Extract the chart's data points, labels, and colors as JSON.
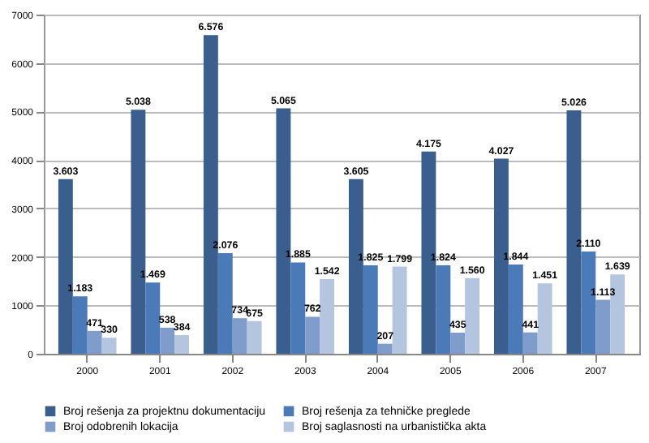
{
  "chart_data": {
    "type": "bar",
    "categories": [
      "2000",
      "2001",
      "2002",
      "2003",
      "2004",
      "2005",
      "2006",
      "2007"
    ],
    "series": [
      {
        "name": "Broj rešenja za projektnu dokumentaciju",
        "color": "#3a5f8f",
        "values": [
          3603,
          5038,
          6576,
          5065,
          3605,
          4175,
          4027,
          5026
        ],
        "value_labels": [
          "3.603",
          "5.038",
          "6.576",
          "5.065",
          "3.605",
          "4.175",
          "4.027",
          "5.026"
        ]
      },
      {
        "name": "Broj rešenja za tehničke preglede",
        "color": "#4a7ab8",
        "values": [
          1183,
          1469,
          2076,
          1885,
          1825,
          1824,
          1844,
          2110
        ],
        "value_labels": [
          "1.183",
          "1.469",
          "2.076",
          "1.885",
          "1.825",
          "1.824",
          "1.844",
          "2.110"
        ]
      },
      {
        "name": "Broj odobrenih lokacija",
        "color": "#7f9ccb",
        "values": [
          471,
          538,
          734,
          762,
          207,
          435,
          441,
          1113
        ],
        "value_labels": [
          "471",
          "538",
          "734",
          "762",
          "207",
          "435",
          "441",
          "1.113"
        ]
      },
      {
        "name": "Broj saglasnosti na urbanistička akta",
        "color": "#b4c5e0",
        "values": [
          330,
          384,
          675,
          1542,
          1799,
          1560,
          1451,
          1639
        ],
        "value_labels": [
          "330",
          "384",
          "675",
          "1.542",
          "1.799",
          "1.560",
          "1.451",
          "1.639"
        ]
      }
    ],
    "ylim": [
      0,
      7000
    ],
    "yticks": [
      0,
      1000,
      2000,
      3000,
      4000,
      5000,
      6000,
      7000
    ],
    "grid": "y",
    "legend": "bottom"
  }
}
